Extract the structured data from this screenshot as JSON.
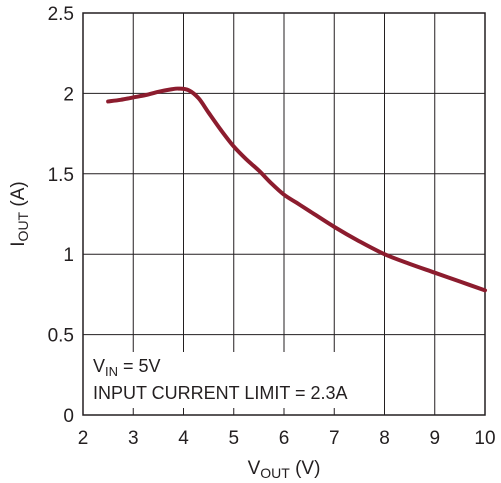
{
  "chart_data": {
    "type": "line",
    "xlabel": {
      "main": "V",
      "sub": "OUT",
      "unit": " (V)"
    },
    "ylabel": {
      "main": "I",
      "sub": "OUT",
      "unit": " (A)"
    },
    "xlim": [
      2,
      10
    ],
    "ylim": [
      0,
      2.5
    ],
    "x_ticks": [
      "2",
      "3",
      "4",
      "5",
      "6",
      "7",
      "8",
      "9",
      "10"
    ],
    "y_ticks": [
      "0",
      "0.5",
      "1",
      "1.5",
      "2",
      "2.5"
    ],
    "grid": true,
    "series": [
      {
        "color": "#8c1c2e",
        "x": [
          2.5,
          2.75,
          3.0,
          3.25,
          3.5,
          3.75,
          3.9,
          4.1,
          4.3,
          4.5,
          4.75,
          5.0,
          5.25,
          5.5,
          5.75,
          6.0,
          6.25,
          6.5,
          7.0,
          7.5,
          8.0,
          8.5,
          9.0,
          9.5,
          10.0
        ],
        "y": [
          1.95,
          1.96,
          1.975,
          1.99,
          2.01,
          2.025,
          2.03,
          2.02,
          1.97,
          1.88,
          1.77,
          1.67,
          1.59,
          1.52,
          1.44,
          1.37,
          1.32,
          1.27,
          1.17,
          1.08,
          1.0,
          0.94,
          0.885,
          0.83,
          0.775
        ]
      }
    ],
    "annotations": [
      {
        "main": "V",
        "sub": "IN",
        "rest": " = 5V"
      },
      {
        "text": "INPUT CURRENT LIMIT = 2.3A"
      }
    ]
  }
}
